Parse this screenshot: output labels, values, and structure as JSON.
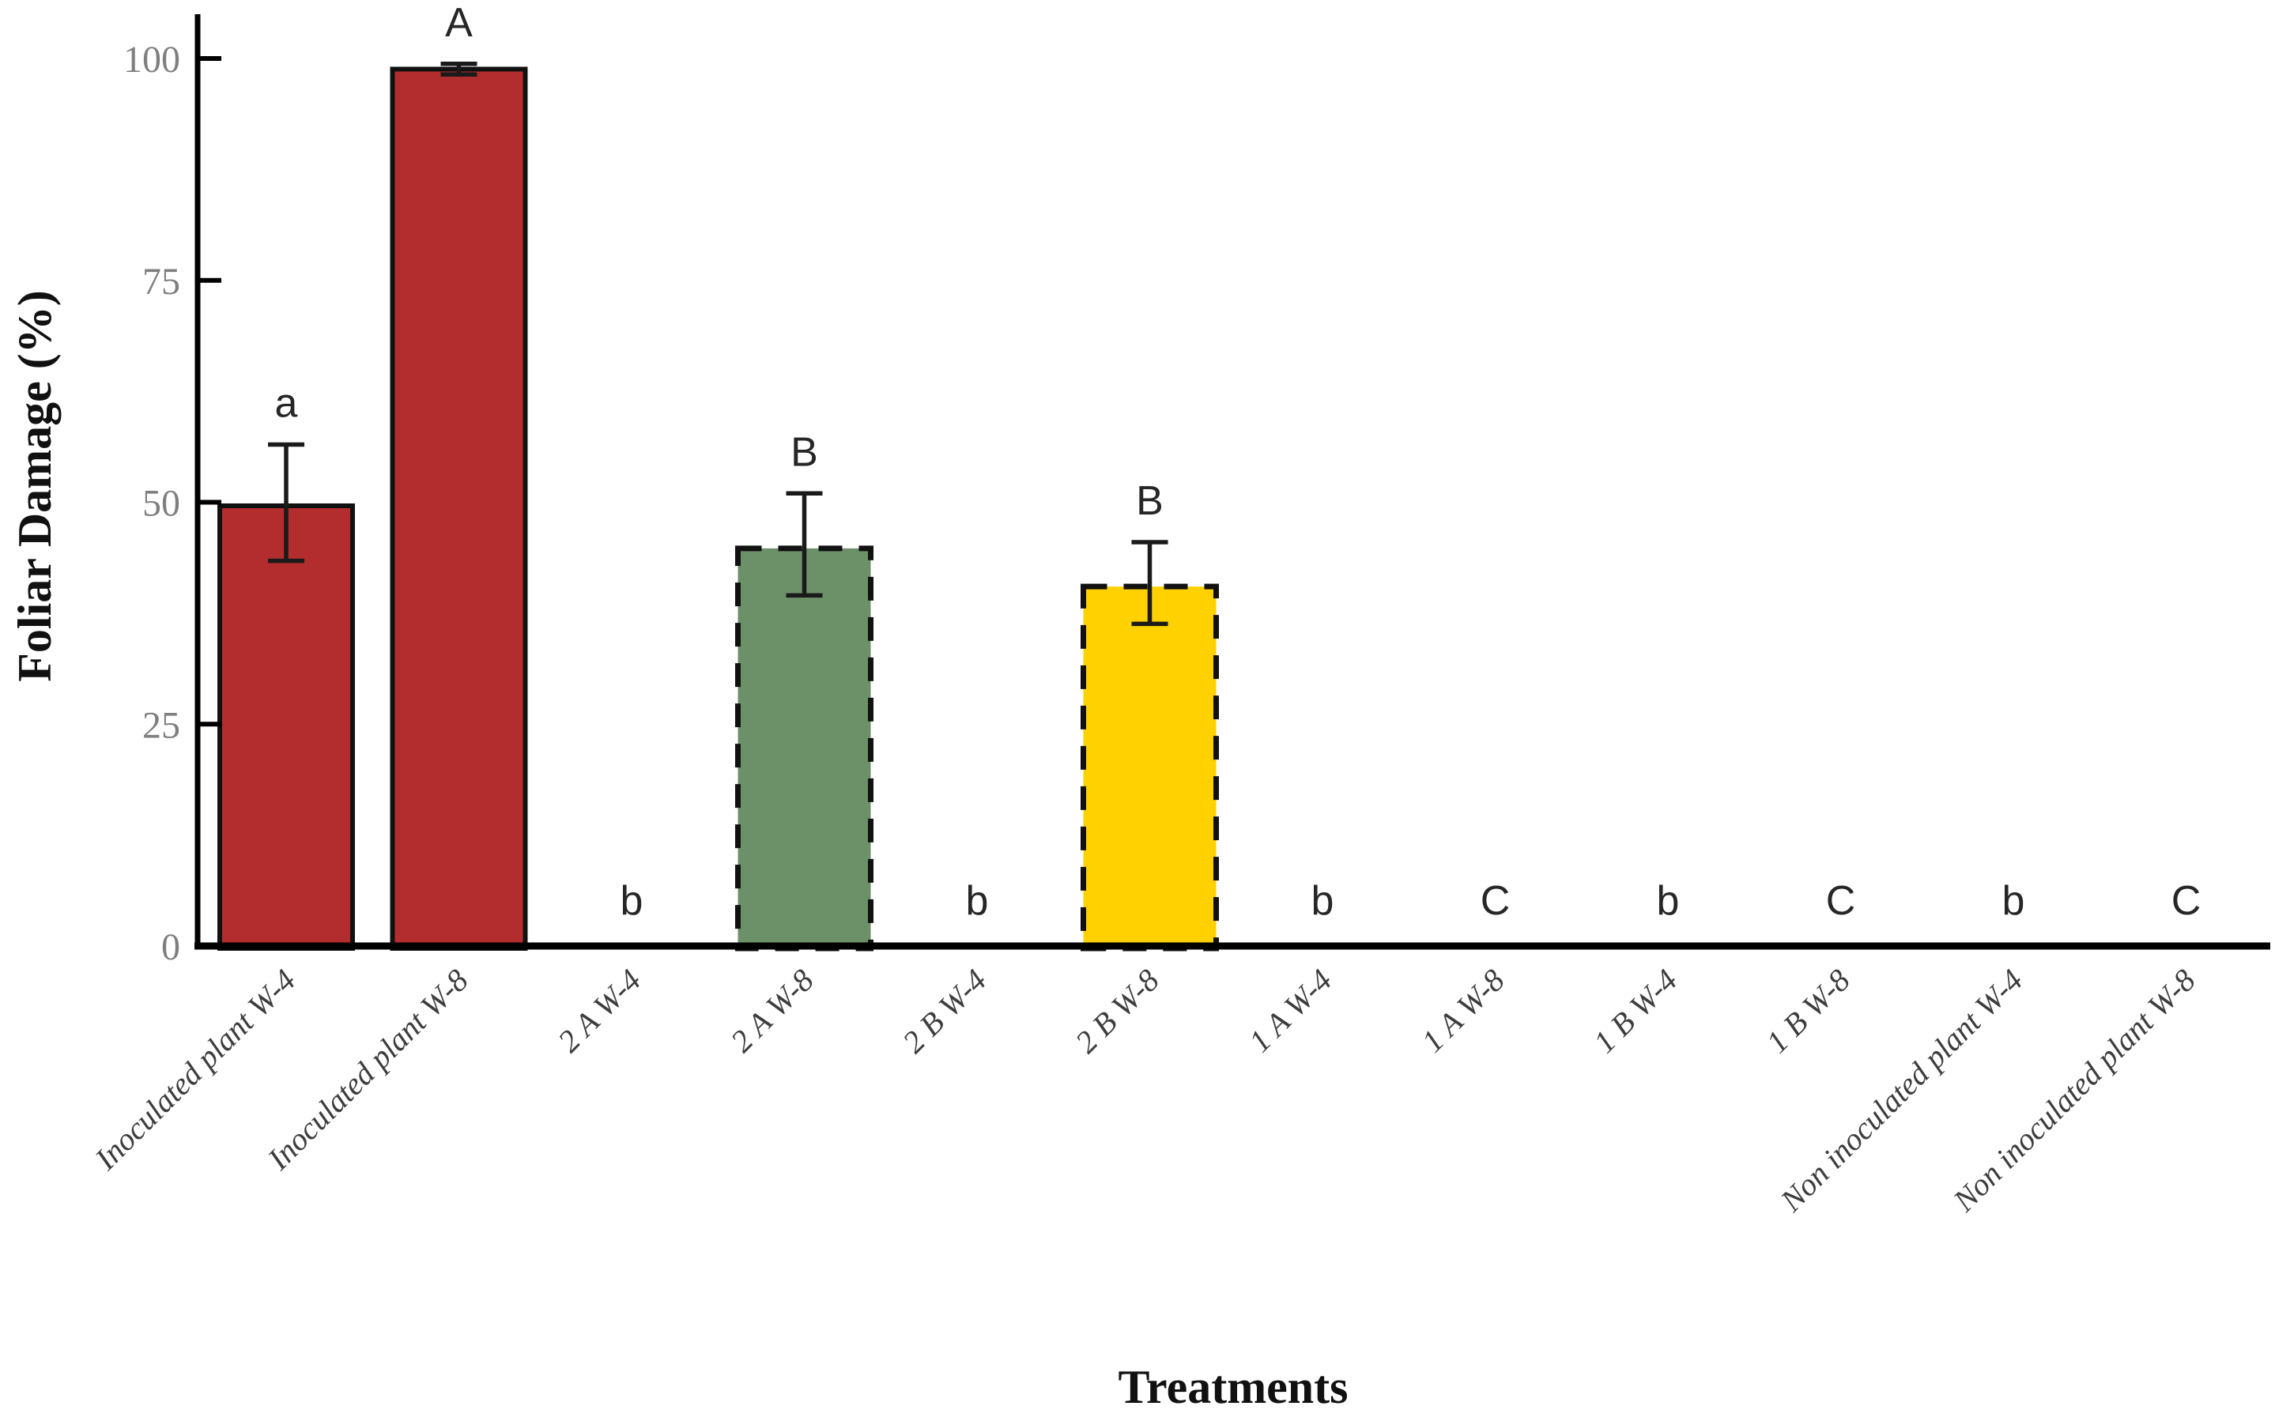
{
  "figure": {
    "background": "#ffffff"
  },
  "chart_data": {
    "type": "bar",
    "title": "",
    "xlabel": "Treatments",
    "ylabel": "Foliar Damage (%)",
    "ylim": [
      0,
      100
    ],
    "yticks": [
      0,
      25,
      50,
      75,
      100
    ],
    "grid": false,
    "legend": "none",
    "categories": [
      "Inoculated plant W-4",
      "Inoculated plant W-8",
      "2 A W-4",
      "2 A W-8",
      "2 B W-4",
      "2 B W-8",
      "1 A W-4",
      "1 A W-8",
      "1 B W-4",
      "1 B W-8",
      "Non inoculated plant W-4",
      "Non inoculated plant W-8"
    ],
    "values": [
      49.6,
      98.8,
      0,
      44.8,
      0,
      40.5,
      0,
      0,
      0,
      0,
      0,
      0
    ],
    "error_low": [
      43.4,
      98.2,
      null,
      39.5,
      null,
      36.3,
      null,
      null,
      null,
      null,
      null,
      null
    ],
    "error_high": [
      56.5,
      99.4,
      null,
      51.0,
      null,
      45.5,
      null,
      null,
      null,
      null,
      null,
      null
    ],
    "significance_letters": [
      "a",
      "A",
      "b",
      "B",
      "b",
      "B",
      "b",
      "C",
      "b",
      "C",
      "b",
      "C"
    ],
    "bar_fill_colors": [
      "#B32D2E",
      "#B32D2E",
      null,
      "#6C9168",
      null,
      "#FFD100",
      null,
      null,
      null,
      null,
      null,
      null
    ],
    "bar_border_styles": [
      "solid",
      "solid",
      null,
      "dashed",
      null,
      "dashed",
      null,
      null,
      null,
      null,
      null,
      null
    ],
    "colors": {
      "bar_red": "#B32D2E",
      "bar_green": "#6C9168",
      "bar_yellow": "#FFD100",
      "bar_border": "#111111",
      "axis": "#000000",
      "error_bar": "#1a1a1a",
      "tick_label": "#7f7f7f",
      "category_label": "#3d3d3d",
      "letter": "#262626",
      "axis_title": "#111111"
    }
  }
}
